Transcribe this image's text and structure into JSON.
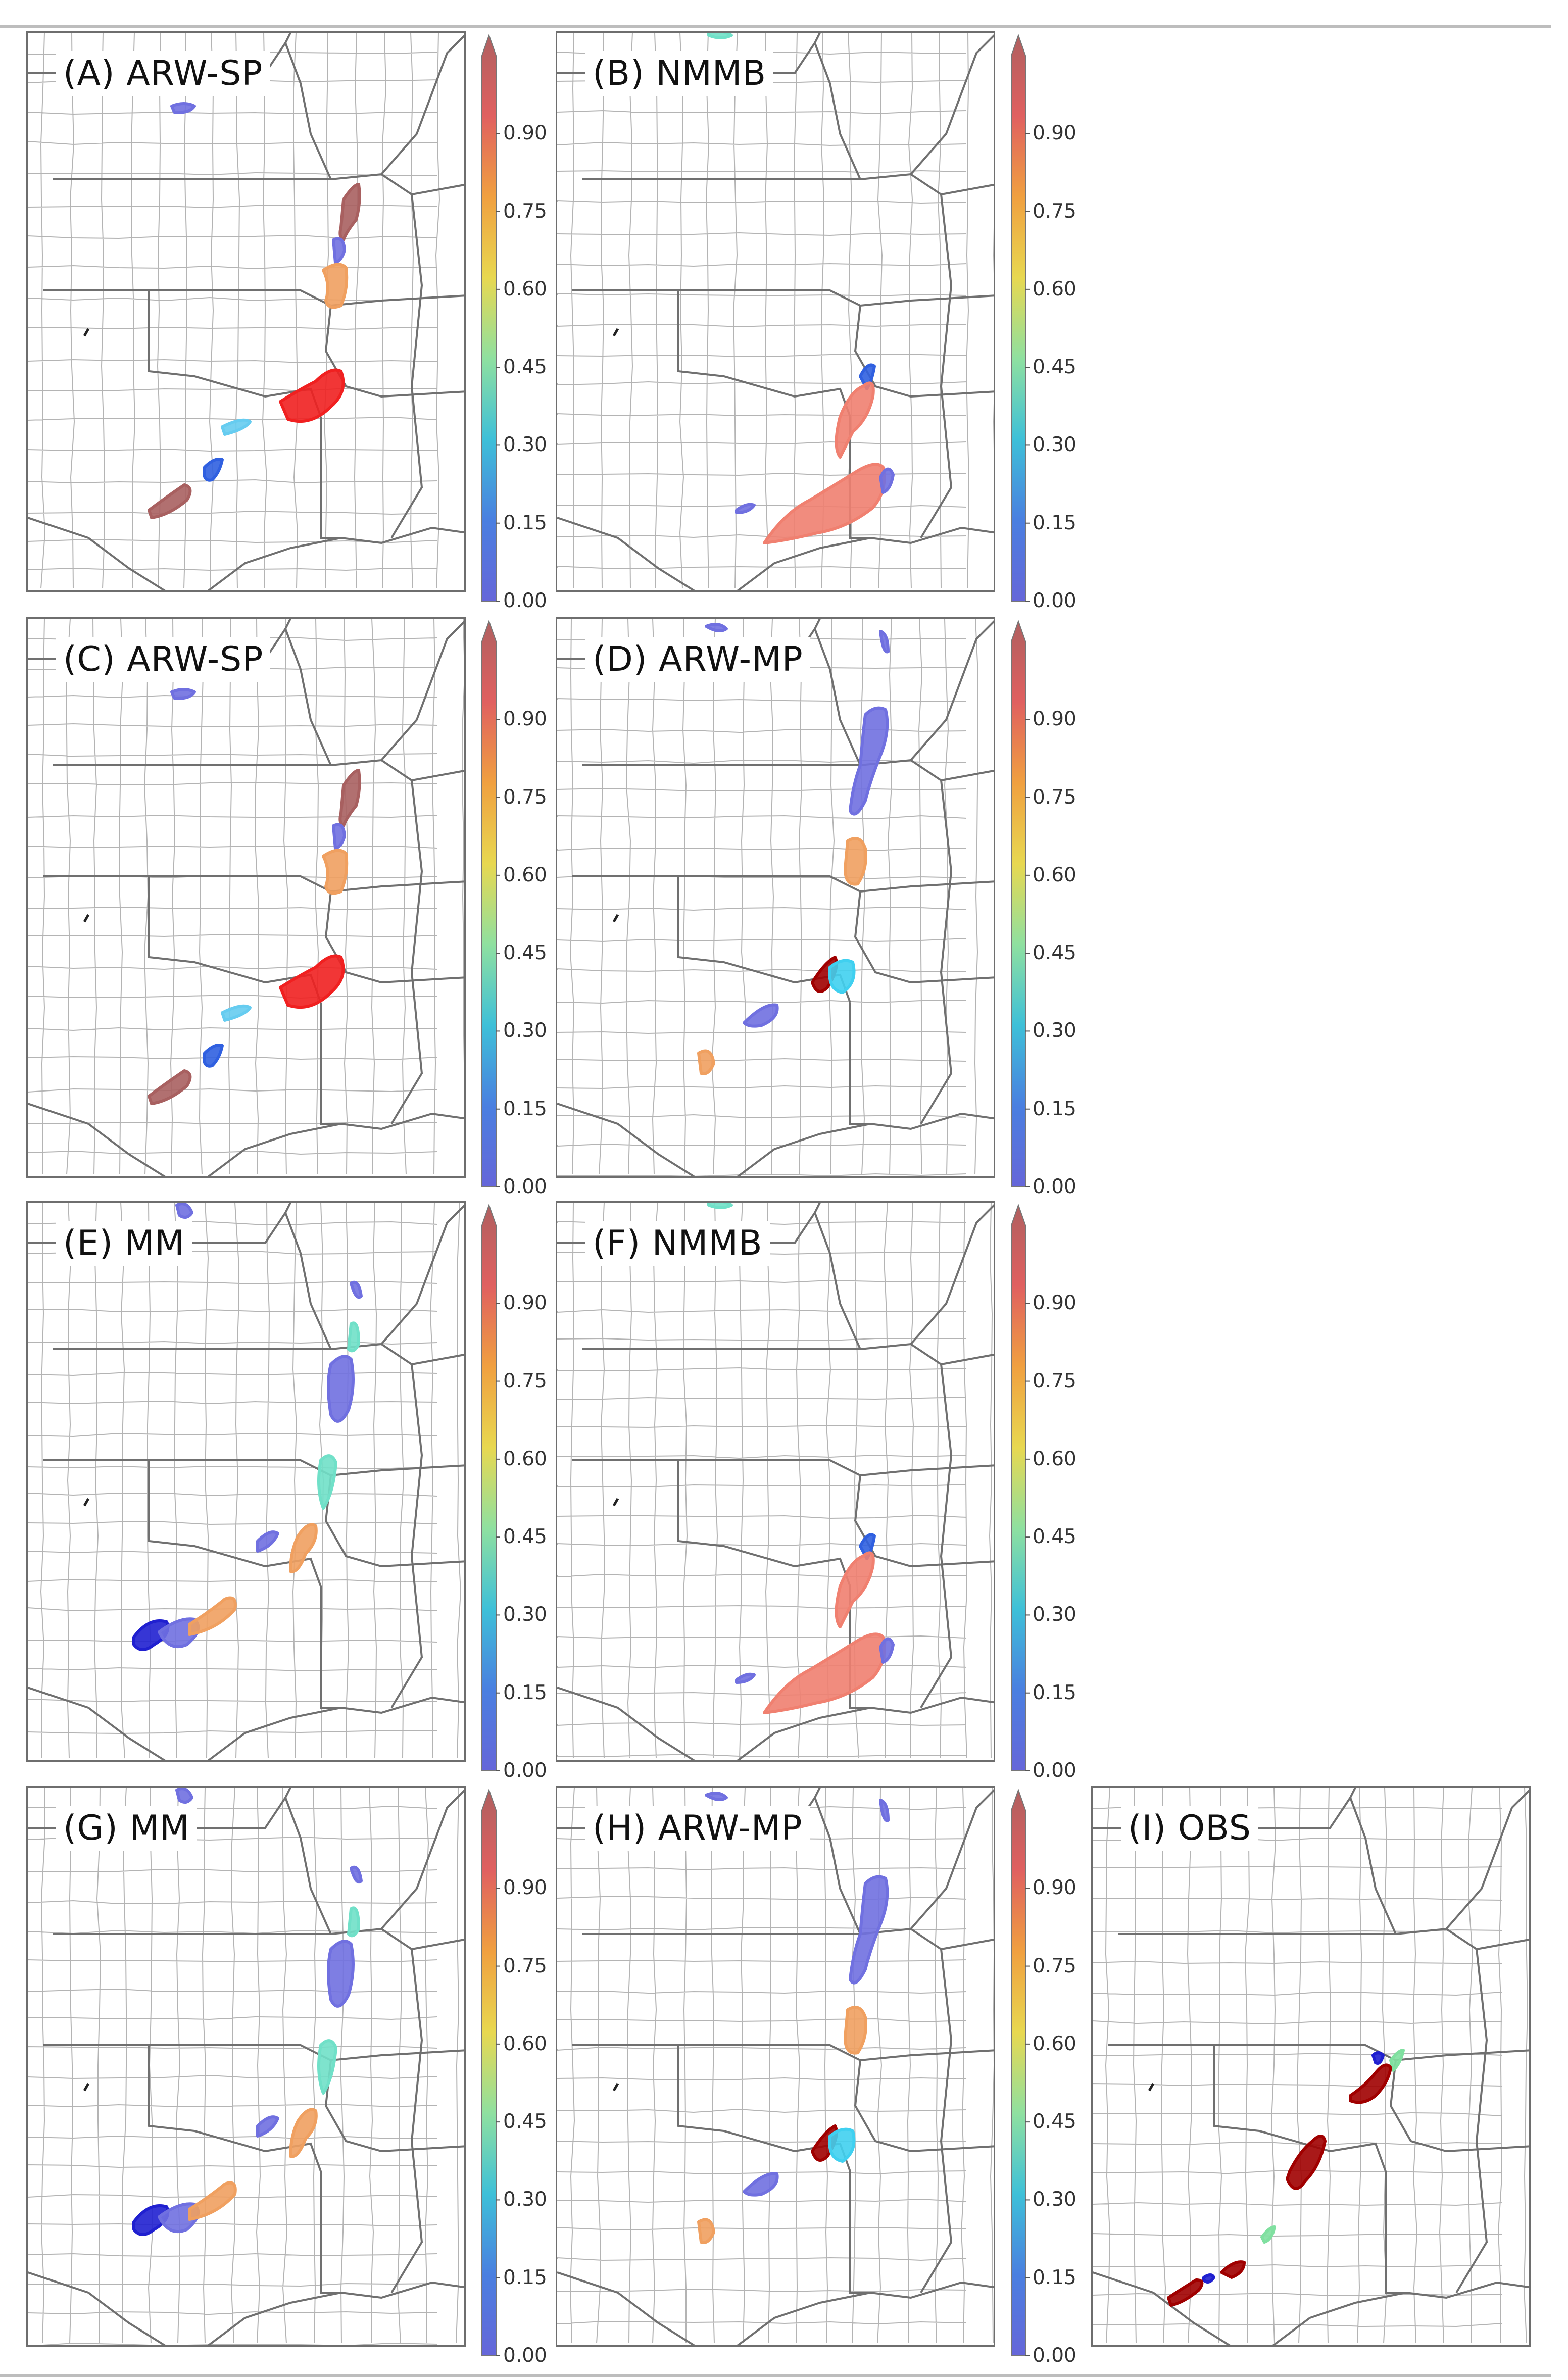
{
  "colorbar": {
    "ticks": [
      "0.00",
      "0.15",
      "0.30",
      "0.45",
      "0.60",
      "0.75",
      "0.90"
    ],
    "colors": [
      "#6666d9",
      "#4a7fe0",
      "#3ec0d8",
      "#8fe0a0",
      "#e8d850",
      "#f0a040",
      "#e06060",
      "#b06060"
    ]
  },
  "panels": [
    {
      "id": "A",
      "title": "(A) ARW-SP",
      "colorbar": true
    },
    {
      "id": "B",
      "title": "(B) NMMB",
      "colorbar": true
    },
    {
      "id": "C",
      "title": "(C) ARW-SP",
      "colorbar": true
    },
    {
      "id": "D",
      "title": "(D) ARW-MP",
      "colorbar": true
    },
    {
      "id": "E",
      "title": "(E) MM",
      "colorbar": true
    },
    {
      "id": "F",
      "title": "(F) NMMB",
      "colorbar": true
    },
    {
      "id": "G",
      "title": "(G) MM",
      "colorbar": true
    },
    {
      "id": "H",
      "title": "(H) ARW-MP",
      "colorbar": true
    },
    {
      "id": "I",
      "title": "(I) OBS",
      "colorbar": false
    }
  ],
  "storm_colors": {
    "brown": "#a86060",
    "orange": "#f0a060",
    "red": "#f02020",
    "lightblue": "#66ccf0",
    "blue": "#3060e0",
    "purple": "#7070e0",
    "salmon": "#f08070",
    "cyan": "#40d0f0",
    "teal": "#70e0c8",
    "darkred": "#a00000",
    "green": "#80e0a0",
    "navy": "#2020d0"
  }
}
